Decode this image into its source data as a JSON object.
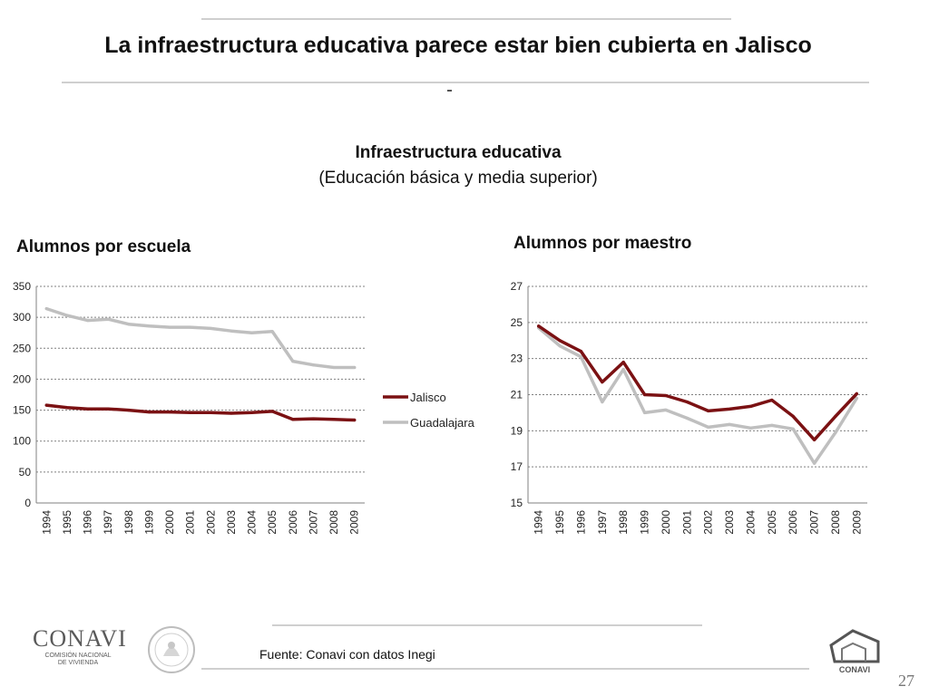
{
  "slide": {
    "title": "La infraestructura educativa parece estar bien cubierta en Jalisco",
    "dash": "-",
    "chart_title": "Infraestructura educativa",
    "chart_subtitle": "(Educación básica y media superior)",
    "source": "Fuente: Conavi con datos Inegi",
    "page_number": "27",
    "logo_left_text": "CONAVI",
    "logo_left_subtext_1": "COMISIÓN NACIONAL",
    "logo_left_subtext_2": "DE VIVIENDA",
    "logo_right_text": "CONAVI"
  },
  "colors": {
    "jalisco": "#7b1113",
    "guadalajara": "#bfbfbf",
    "grid": "#808080",
    "rule": "#cfcfcf"
  },
  "chart_data": [
    {
      "type": "line",
      "title": "Alumnos por escuela",
      "categories": [
        "1994",
        "1995",
        "1996",
        "1997",
        "1998",
        "1999",
        "2000",
        "2001",
        "2002",
        "2003",
        "2004",
        "2005",
        "2006",
        "2007",
        "2008",
        "2009"
      ],
      "series": [
        {
          "name": "Jalisco",
          "values": [
            158,
            154,
            152,
            152,
            150,
            147,
            147,
            146,
            146,
            145,
            146,
            148,
            135,
            136,
            135,
            134
          ]
        },
        {
          "name": "Guadalajara",
          "values": [
            314,
            303,
            295,
            297,
            289,
            286,
            284,
            284,
            282,
            278,
            275,
            277,
            229,
            223,
            219,
            219
          ]
        }
      ],
      "ylim": [
        0,
        350
      ],
      "yticks": [
        "0",
        "50",
        "100",
        "150",
        "200",
        "250",
        "300",
        "350"
      ],
      "grid": true,
      "legend": "right"
    },
    {
      "type": "line",
      "title": "Alumnos por maestro",
      "categories": [
        "1994",
        "1995",
        "1996",
        "1997",
        "1998",
        "1999",
        "2000",
        "2001",
        "2002",
        "2003",
        "2004",
        "2005",
        "2006",
        "2007",
        "2008",
        "2009"
      ],
      "series": [
        {
          "name": "Jalisco",
          "values": [
            24.8,
            24.0,
            23.4,
            21.7,
            22.8,
            21.0,
            20.95,
            20.6,
            20.1,
            20.2,
            20.35,
            20.7,
            19.8,
            18.5,
            19.8,
            21.05
          ]
        },
        {
          "name": "Guadalajara",
          "values": [
            24.7,
            23.7,
            23.1,
            20.6,
            22.4,
            20.0,
            20.15,
            19.7,
            19.2,
            19.35,
            19.15,
            19.3,
            19.1,
            17.2,
            18.9,
            20.8
          ]
        }
      ],
      "ylim": [
        15,
        27
      ],
      "yticks": [
        "15",
        "17",
        "19",
        "21",
        "23",
        "25",
        "27"
      ],
      "grid": true,
      "legend": "none"
    }
  ]
}
